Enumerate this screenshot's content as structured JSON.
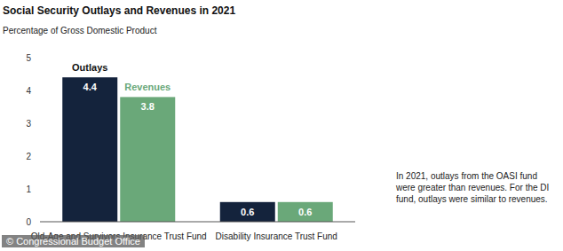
{
  "chart_data": {
    "type": "bar",
    "title": "Social Security Outlays and Revenues in 2021",
    "subtitle": "Percentage of Gross Domestic Product",
    "categories": [
      "Old-Age and Survivors Insurance Trust Fund",
      "Disability Insurance Trust Fund"
    ],
    "series": [
      {
        "name": "Outlays",
        "color": "#14233c",
        "values": [
          4.4,
          0.6
        ]
      },
      {
        "name": "Revenues",
        "color": "#6aa879",
        "values": [
          3.8,
          0.6
        ]
      }
    ],
    "ylim": [
      0,
      5
    ],
    "yticks": [
      0,
      1,
      2,
      3,
      4,
      5
    ],
    "grid": false,
    "data_labels": true,
    "annotation": "In 2021, outlays from the OASI fund were greater than revenues. For the DI fund, outlays were similar to revenues.",
    "source": "© Congressional Budget Office"
  }
}
